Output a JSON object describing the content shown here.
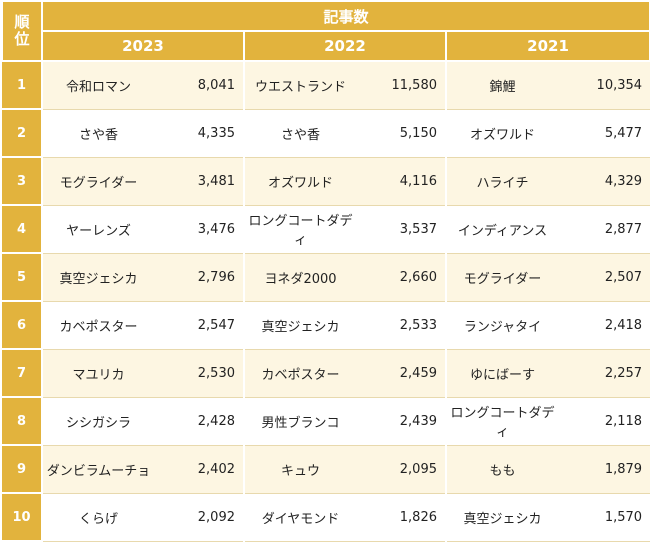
{
  "table": {
    "rank_header": "順位",
    "count_header": "記事数",
    "years": [
      "2023",
      "2022",
      "2021"
    ],
    "rows": [
      [
        "1",
        "令和ロマン",
        "8,041",
        "ウエストランド",
        "11,580",
        "錦鯉",
        "10,354"
      ],
      [
        "2",
        "さや香",
        "4,335",
        "さや香",
        "5,150",
        "オズワルド",
        "5,477"
      ],
      [
        "3",
        "モグライダー",
        "3,481",
        "オズワルド",
        "4,116",
        "ハライチ",
        "4,329"
      ],
      [
        "4",
        "ヤーレンズ",
        "3,476",
        "ロングコートダディ",
        "3,537",
        "インディアンス",
        "2,877"
      ],
      [
        "5",
        "真空ジェシカ",
        "2,796",
        "ヨネダ2000",
        "2,660",
        "モグライダー",
        "2,507"
      ],
      [
        "6",
        "カベポスター",
        "2,547",
        "真空ジェシカ",
        "2,533",
        "ランジャタイ",
        "2,418"
      ],
      [
        "7",
        "マユリカ",
        "2,530",
        "カベポスター",
        "2,459",
        "ゆにばーす",
        "2,257"
      ],
      [
        "8",
        "シシガシラ",
        "2,428",
        "男性ブランコ",
        "2,439",
        "ロングコートダディ",
        "2,118"
      ],
      [
        "9",
        "ダンビラムーチョ",
        "2,402",
        "キュウ",
        "2,095",
        "もも",
        "1,879"
      ],
      [
        "10",
        "くらげ",
        "2,092",
        "ダイヤモンド",
        "1,826",
        "真空ジェシカ",
        "1,570"
      ]
    ]
  }
}
